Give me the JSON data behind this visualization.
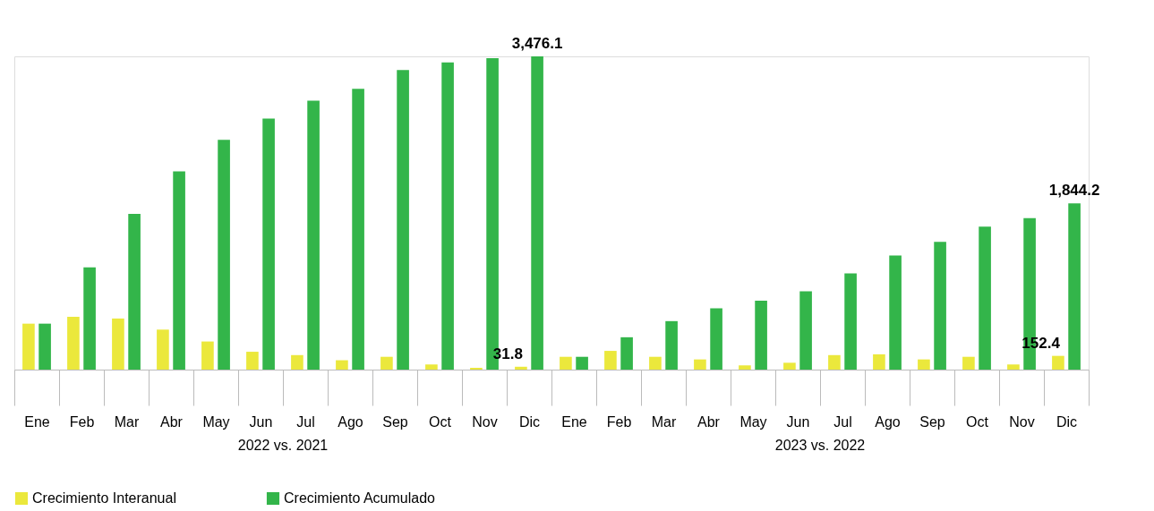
{
  "chart_data": {
    "type": "bar",
    "categories": [
      "Ene",
      "Feb",
      "Mar",
      "Abr",
      "May",
      "Jun",
      "Jul",
      "Ago",
      "Sep",
      "Oct",
      "Nov",
      "Dic",
      "Ene",
      "Feb",
      "Mar",
      "Abr",
      "May",
      "Jun",
      "Jul",
      "Ago",
      "Sep",
      "Oct",
      "Nov",
      "Dic"
    ],
    "series": [
      {
        "name": "Crecimiento Interanual",
        "color": "#ebe83c",
        "values": [
          510,
          586,
          567,
          444,
          312,
          198,
          161,
          104,
          142,
          57,
          19,
          31.8,
          142,
          208,
          142,
          113,
          47,
          76,
          161,
          170,
          113,
          142,
          57,
          152.4
        ],
        "value_labels": [
          null,
          null,
          null,
          null,
          null,
          null,
          null,
          null,
          null,
          null,
          null,
          "31.8",
          null,
          null,
          null,
          null,
          null,
          null,
          null,
          null,
          null,
          null,
          null,
          "152.4"
        ]
      },
      {
        "name": "Crecimiento Acumulado",
        "color": "#33b54a",
        "values": [
          510,
          1134,
          1729,
          2201,
          2550,
          2787,
          2985,
          3117,
          3325,
          3410,
          3457,
          3476.1,
          142,
          359,
          538,
          680,
          765,
          869,
          1067,
          1266,
          1417,
          1587,
          1681,
          1844.2
        ],
        "value_labels": [
          null,
          null,
          null,
          null,
          null,
          null,
          null,
          null,
          null,
          null,
          null,
          "3,476.1",
          null,
          null,
          null,
          null,
          null,
          null,
          null,
          null,
          null,
          null,
          null,
          "1,844.2"
        ]
      }
    ],
    "annotations": [
      "2022 vs. 2021",
      "2023 vs. 2022"
    ],
    "legend": "bottom",
    "grid": false
  }
}
